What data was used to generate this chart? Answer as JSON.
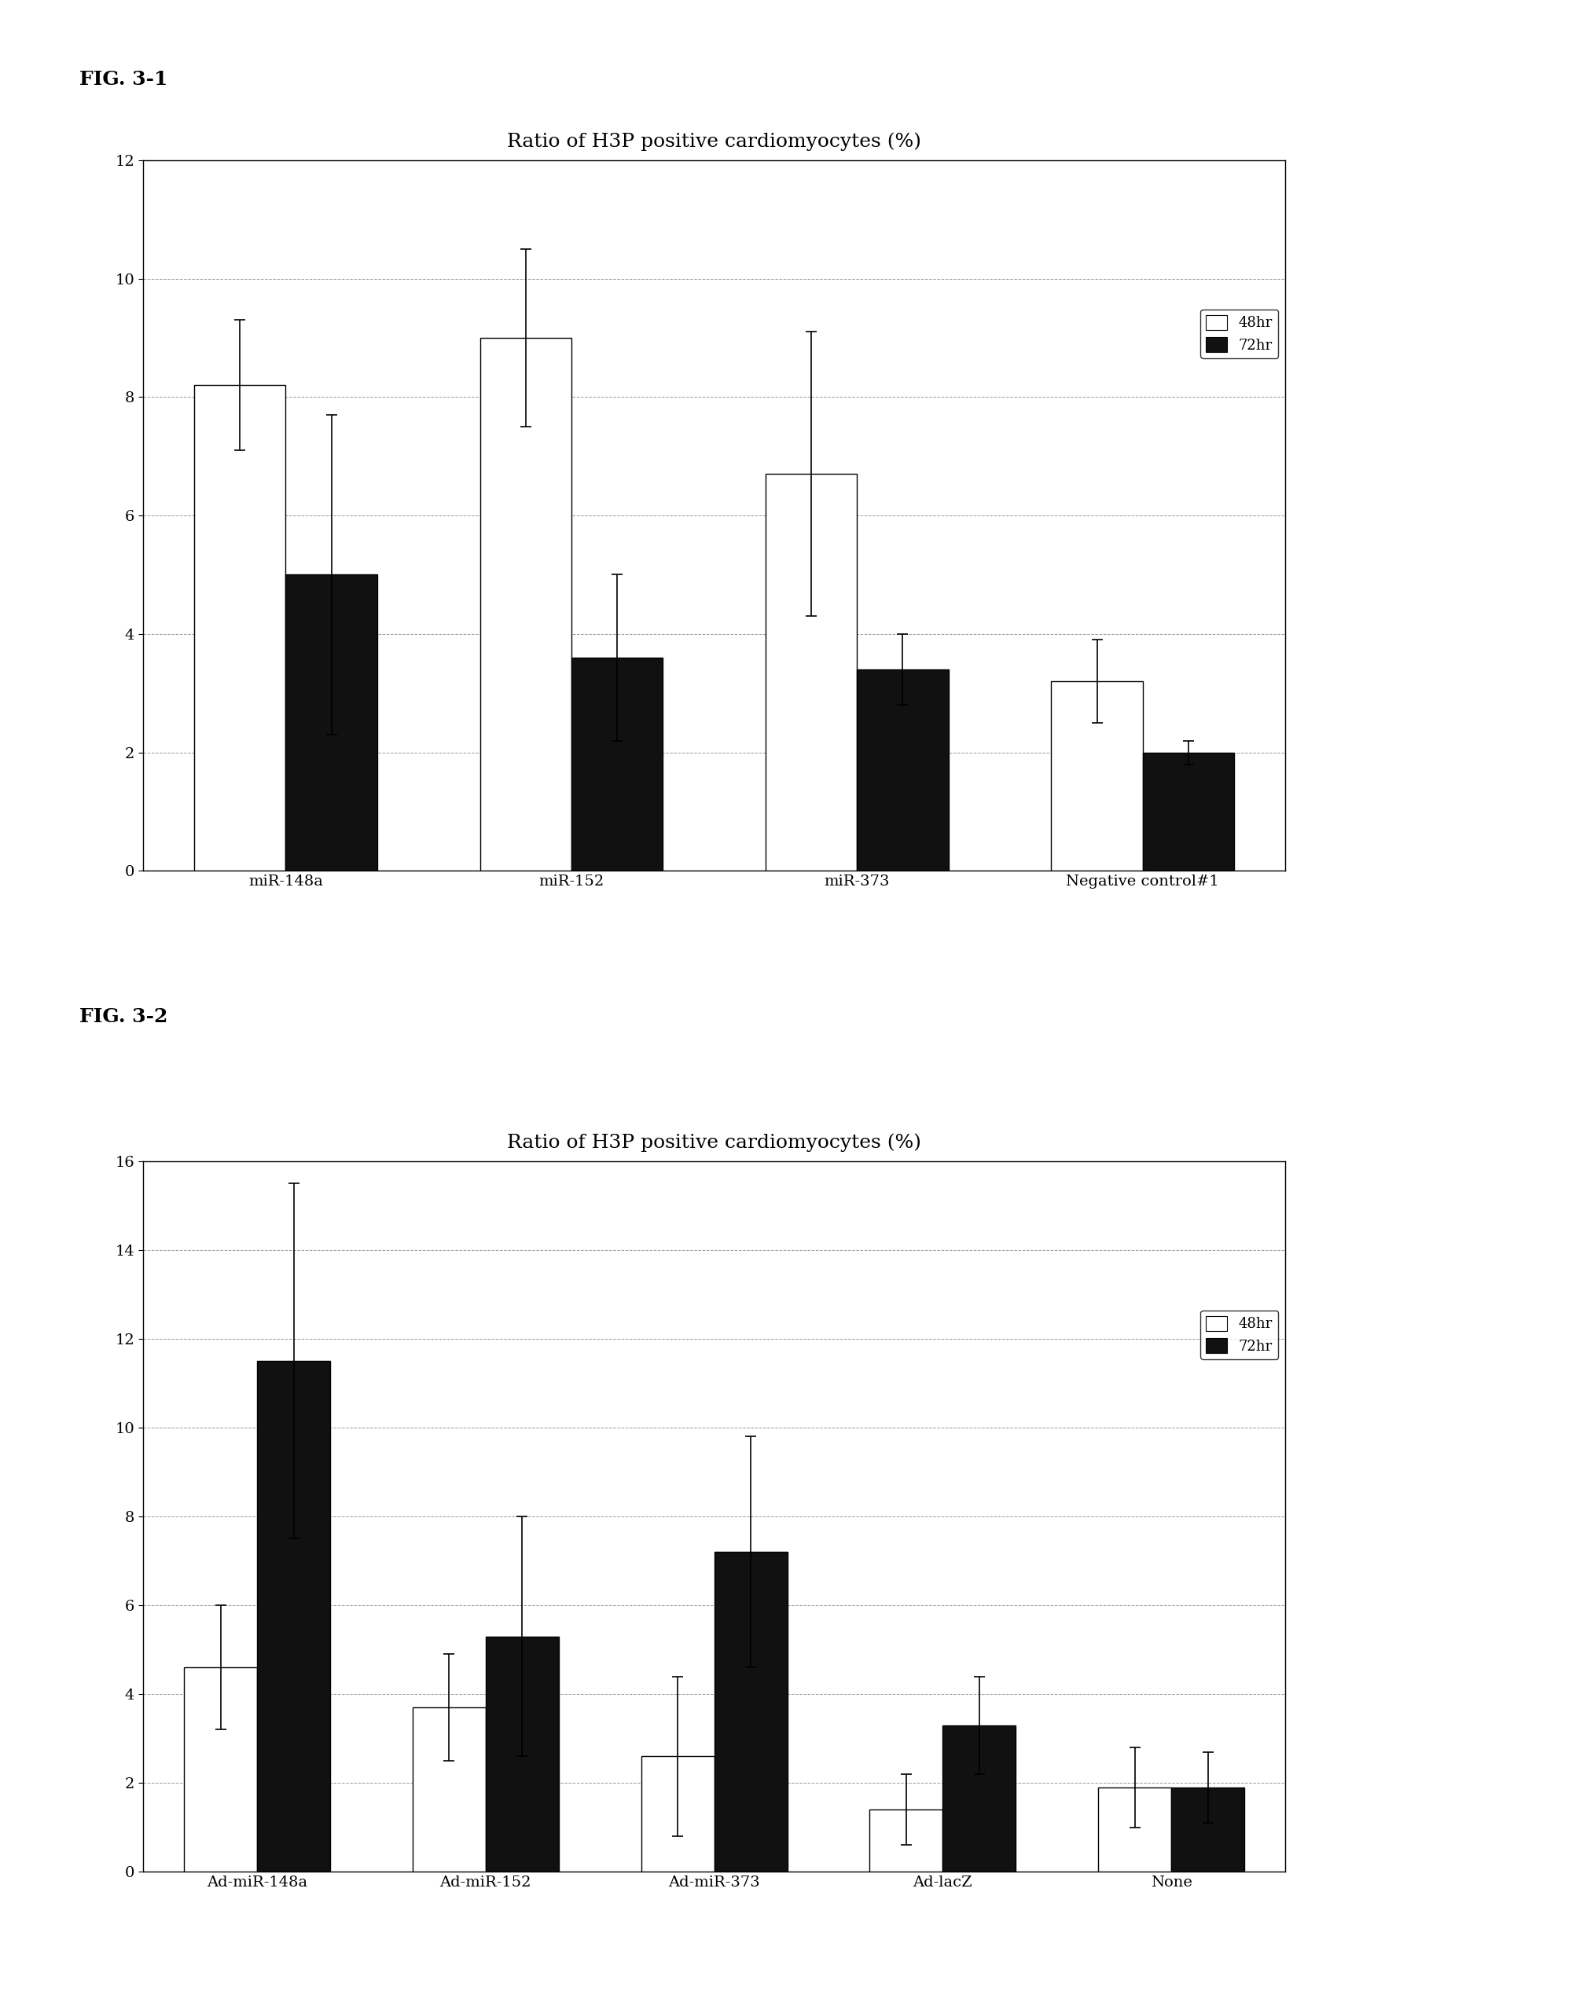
{
  "fig1": {
    "title": "Ratio of H3P positive cardiomyocytes (%)",
    "label": "FIG. 3-1",
    "categories": [
      "miR-148a",
      "miR-152",
      "miR-373",
      "Negative control#1"
    ],
    "val_48hr": [
      8.2,
      9.0,
      6.7,
      3.2
    ],
    "val_72hr": [
      5.0,
      3.6,
      3.4,
      2.0
    ],
    "err_48hr": [
      1.1,
      1.5,
      2.4,
      0.7
    ],
    "err_72hr": [
      2.7,
      1.4,
      0.6,
      0.2
    ],
    "ylim": [
      0,
      12
    ],
    "yticks": [
      0,
      2,
      4,
      6,
      8,
      10,
      12
    ]
  },
  "fig2": {
    "title": "Ratio of H3P positive cardiomyocytes (%)",
    "label": "FIG. 3-2",
    "categories": [
      "Ad-miR-148a",
      "Ad-miR-152",
      "Ad-miR-373",
      "Ad-lacZ",
      "None"
    ],
    "val_48hr": [
      4.6,
      3.7,
      2.6,
      1.4,
      1.9
    ],
    "val_72hr": [
      11.5,
      5.3,
      7.2,
      3.3,
      1.9
    ],
    "err_48hr": [
      1.4,
      1.2,
      1.8,
      0.8,
      0.9
    ],
    "err_72hr": [
      4.0,
      2.7,
      2.6,
      1.1,
      0.8
    ],
    "ylim": [
      0,
      16
    ],
    "yticks": [
      0,
      2,
      4,
      6,
      8,
      10,
      12,
      14,
      16
    ]
  },
  "color_48hr": "#ffffff",
  "color_72hr": "#111111",
  "edge_color": "#000000",
  "bar_width": 0.32,
  "legend_48hr": "48hr",
  "legend_72hr": "72hr",
  "background_color": "#ffffff",
  "title_fontsize": 18,
  "label_fontsize": 14,
  "tick_fontsize": 14,
  "legend_fontsize": 13,
  "fig_label_fontsize": 18
}
